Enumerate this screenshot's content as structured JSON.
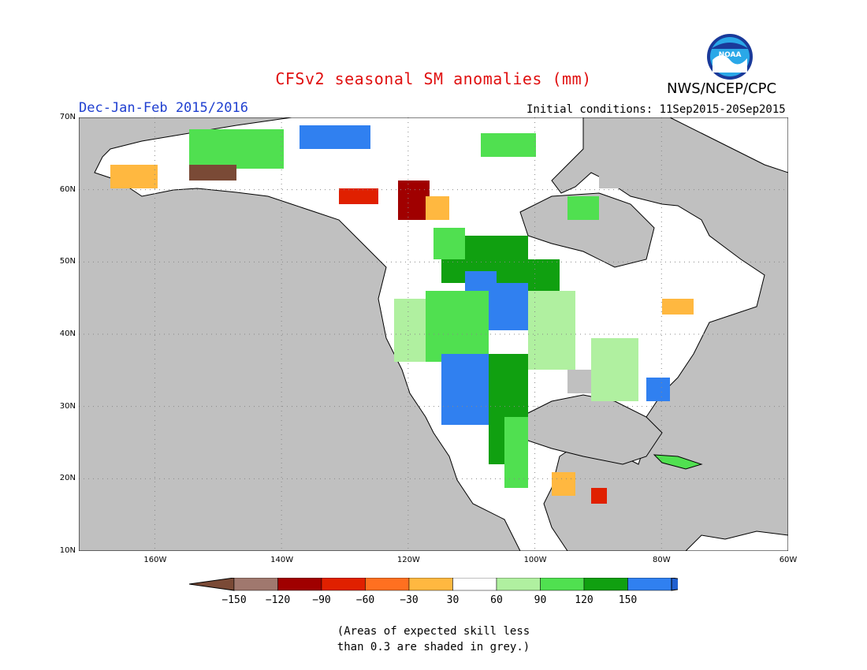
{
  "header": {
    "title": "CFSv2 seasonal SM anomalies (mm)",
    "season": "Dec-Jan-Feb 2015/2016",
    "initial_conditions": "Initial conditions: 11Sep2015-20Sep2015",
    "agency": "NWS/NCEP/CPC",
    "logo_text": "NOAA"
  },
  "map": {
    "lon_range": [
      -172,
      -60
    ],
    "lat_range": [
      10,
      70
    ],
    "lat_ticks": [
      {
        "value": 70,
        "label": "70N"
      },
      {
        "value": 60,
        "label": "60N"
      },
      {
        "value": 50,
        "label": "50N"
      },
      {
        "value": 40,
        "label": "40N"
      },
      {
        "value": 30,
        "label": "30N"
      },
      {
        "value": 20,
        "label": "20N"
      },
      {
        "value": 10,
        "label": "10N"
      }
    ],
    "lon_ticks": [
      {
        "value": -160,
        "label": "160W"
      },
      {
        "value": -140,
        "label": "140W"
      },
      {
        "value": -120,
        "label": "120W"
      },
      {
        "value": -100,
        "label": "100W"
      },
      {
        "value": -80,
        "label": "80W"
      },
      {
        "value": -60,
        "label": "60W"
      }
    ],
    "colors": {
      "masked_grey": "#c0c0c0",
      "neutral": "#ffffff",
      "gridline": "#888888",
      "coastline": "#000000"
    }
  },
  "legend": {
    "labels": [
      "-150",
      "-120",
      "-90",
      "-60",
      "-30",
      "30",
      "60",
      "90",
      "120",
      "150"
    ],
    "colors": [
      "#7a4a36",
      "#a0786e",
      "#a00000",
      "#e02000",
      "#ff7020",
      "#ffb840",
      "#ffffff",
      "#b0f0a0",
      "#50e050",
      "#10a010",
      "#3080f0",
      "#2060d0"
    ],
    "note_line1": "(Areas of expected skill less",
    "note_line2": "than 0.3 are shaded in grey.)"
  }
}
